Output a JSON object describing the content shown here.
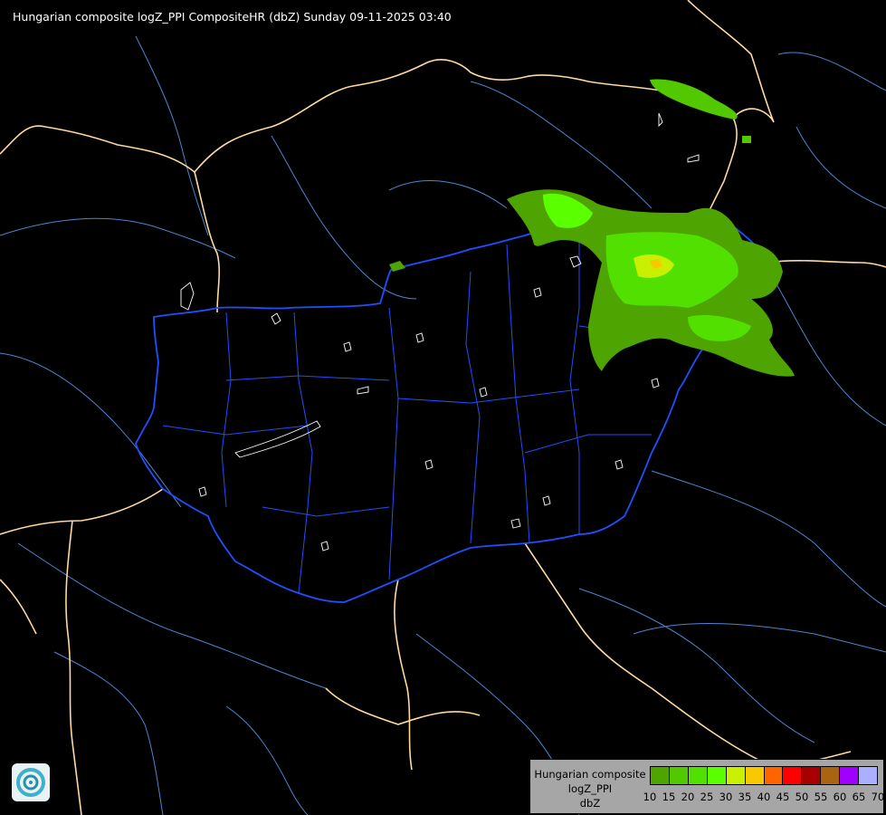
{
  "title": "Hungarian composite logZ_PPI CompositeHR (dbZ) Sunday 09-11-2025 03:40",
  "legend": {
    "lines": [
      "Hungarian composite",
      "logZ_PPI",
      "dbZ"
    ],
    "colors": [
      "#4ea400",
      "#52c800",
      "#52e000",
      "#5aff00",
      "#c8f000",
      "#f8c800",
      "#ff6400",
      "#ff0000",
      "#a80000",
      "#a86410",
      "#a000ff",
      "#aab0ff"
    ],
    "ticks": [
      "10",
      "15",
      "20",
      "25",
      "30",
      "35",
      "40",
      "45",
      "50",
      "55",
      "60",
      "65",
      "70"
    ]
  },
  "map_colors": {
    "background": "#000000",
    "hungary_border": "#1e50ff",
    "country_borders": "#ffd9a0",
    "rivers": "#4f8fd8",
    "county_lines": "#1e50ff"
  }
}
